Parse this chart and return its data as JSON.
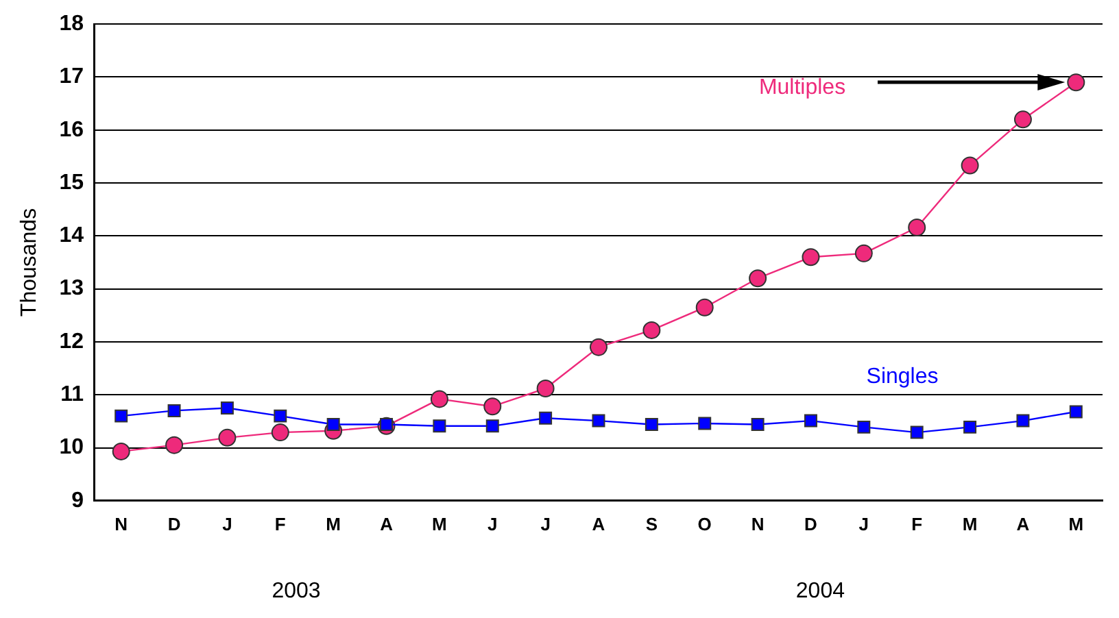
{
  "chart_data": {
    "type": "line",
    "ylabel": "Thousands",
    "categories": [
      "N",
      "D",
      "J",
      "F",
      "M",
      "A",
      "M",
      "J",
      "J",
      "A",
      "S",
      "O",
      "N",
      "D",
      "J",
      "F",
      "M",
      "A",
      "M"
    ],
    "series": [
      {
        "name": "Multiples",
        "color": "#ee2a7b",
        "marker": "circle",
        "values": [
          9.93,
          10.05,
          10.19,
          10.29,
          10.32,
          10.41,
          10.92,
          10.78,
          11.12,
          11.9,
          12.22,
          12.65,
          13.2,
          13.6,
          13.67,
          14.16,
          15.33,
          16.2,
          16.9
        ]
      },
      {
        "name": "Singles",
        "color": "#0000ff",
        "marker": "square",
        "values": [
          10.6,
          10.7,
          10.75,
          10.6,
          10.44,
          10.44,
          10.41,
          10.41,
          10.56,
          10.51,
          10.44,
          10.46,
          10.44,
          10.51,
          10.39,
          10.29,
          10.39,
          10.51,
          10.68
        ]
      }
    ],
    "ylim": [
      9,
      18
    ],
    "yticks": [
      9,
      10,
      11,
      12,
      13,
      14,
      15,
      16,
      17,
      18
    ],
    "grid": "y",
    "legend": false,
    "annotations": [
      "2003",
      "2004"
    ]
  }
}
